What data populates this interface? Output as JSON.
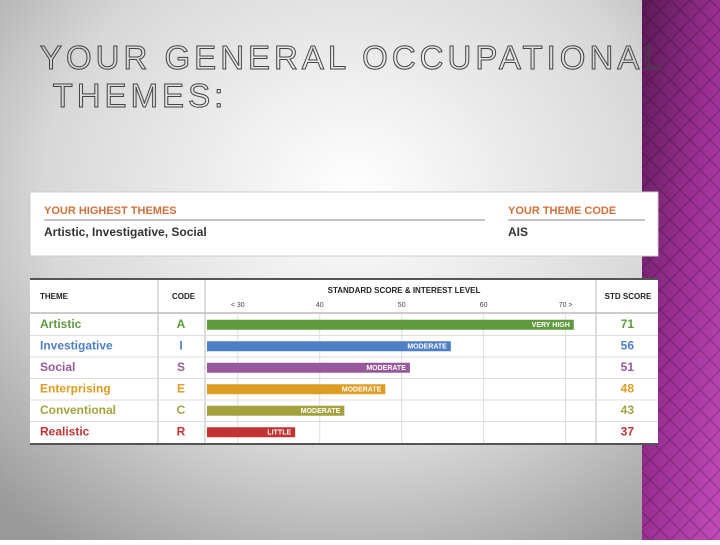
{
  "title": "YOUR GENERAL OCCUPATIONAL THEMES:",
  "summary": {
    "themes_label": "YOUR HIGHEST THEMES",
    "themes": "Artistic, Investigative, Social",
    "code_label": "YOUR THEME CODE",
    "code": "AIS"
  },
  "chart_data": {
    "type": "bar",
    "columns": {
      "theme": "THEME",
      "code": "CODE",
      "scale": "STANDARD SCORE & INTEREST LEVEL",
      "score": "STD SCORE"
    },
    "categories": [
      "Artistic",
      "Investigative",
      "Social",
      "Enterprising",
      "Conventional",
      "Realistic"
    ],
    "codes": [
      "A",
      "I",
      "S",
      "E",
      "C",
      "R"
    ],
    "levels": [
      "VERY HIGH",
      "MODERATE",
      "MODERATE",
      "MODERATE",
      "MODERATE",
      "LITTLE"
    ],
    "values": [
      71,
      56,
      51,
      48,
      43,
      37
    ],
    "colors": [
      "#5e9b3f",
      "#4f80c6",
      "#97599d",
      "#dd9c22",
      "#a3a23f",
      "#c23434"
    ],
    "xlim": [
      26,
      72
    ],
    "xticks": [
      {
        "value": 30,
        "label": "< 30"
      },
      40,
      50,
      60,
      {
        "value": 70,
        "label": "70 >"
      }
    ],
    "grid": true
  }
}
